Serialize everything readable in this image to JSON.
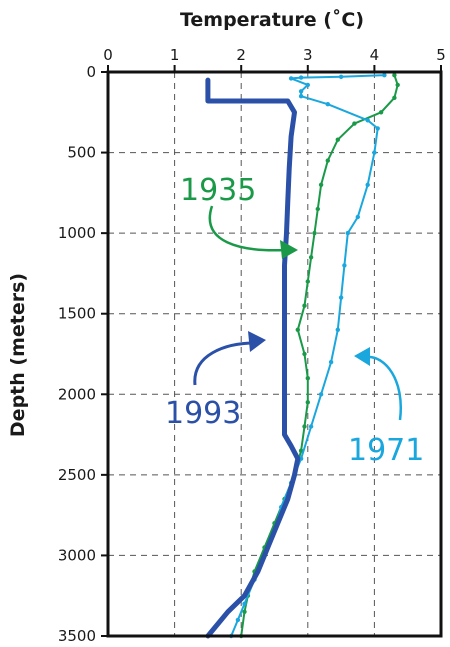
{
  "chart_data": {
    "type": "line",
    "xlabel": "Temperature (˚C)",
    "ylabel": "Depth  (meters)",
    "xlim": [
      0,
      5
    ],
    "ylim": [
      0,
      3500
    ],
    "y_inverted": true,
    "x_axis_position": "top",
    "grid": true,
    "grid_style": "dashed",
    "xticks": [
      "0",
      "1",
      "2",
      "3",
      "4",
      "5"
    ],
    "yticks": [
      "0",
      "500",
      "1000",
      "1500",
      "2000",
      "2500",
      "3000",
      "3500"
    ],
    "series": [
      {
        "name": "1935",
        "color": "#1a9a48",
        "markers": true,
        "points": [
          [
            4.3,
            20
          ],
          [
            4.35,
            80
          ],
          [
            4.3,
            160
          ],
          [
            4.1,
            250
          ],
          [
            3.7,
            320
          ],
          [
            3.45,
            420
          ],
          [
            3.3,
            550
          ],
          [
            3.2,
            700
          ],
          [
            3.15,
            850
          ],
          [
            3.1,
            1000
          ],
          [
            3.05,
            1150
          ],
          [
            3.0,
            1300
          ],
          [
            2.95,
            1450
          ],
          [
            2.85,
            1600
          ],
          [
            2.95,
            1750
          ],
          [
            3.0,
            1900
          ],
          [
            3.0,
            2050
          ],
          [
            2.95,
            2200
          ],
          [
            2.9,
            2350
          ],
          [
            2.8,
            2500
          ],
          [
            2.65,
            2650
          ],
          [
            2.5,
            2800
          ],
          [
            2.35,
            2950
          ],
          [
            2.2,
            3100
          ],
          [
            2.1,
            3250
          ],
          [
            2.05,
            3350
          ],
          [
            2.0,
            3500
          ]
        ]
      },
      {
        "name": "1971",
        "color": "#1aa7de",
        "markers": true,
        "points": [
          [
            4.15,
            20
          ],
          [
            3.5,
            30
          ],
          [
            2.9,
            35
          ],
          [
            2.75,
            40
          ],
          [
            3.0,
            80
          ],
          [
            2.9,
            120
          ],
          [
            2.9,
            150
          ],
          [
            3.3,
            200
          ],
          [
            3.9,
            300
          ],
          [
            4.05,
            350
          ],
          [
            4.0,
            500
          ],
          [
            3.9,
            700
          ],
          [
            3.75,
            900
          ],
          [
            3.6,
            1000
          ],
          [
            3.55,
            1200
          ],
          [
            3.5,
            1400
          ],
          [
            3.45,
            1600
          ],
          [
            3.35,
            1800
          ],
          [
            3.2,
            2000
          ],
          [
            3.05,
            2200
          ],
          [
            2.9,
            2400
          ],
          [
            2.75,
            2550
          ],
          [
            2.6,
            2700
          ],
          [
            2.5,
            2850
          ],
          [
            2.35,
            3000
          ],
          [
            2.2,
            3150
          ],
          [
            2.05,
            3300
          ],
          [
            1.95,
            3400
          ],
          [
            1.85,
            3500
          ]
        ]
      },
      {
        "name": "1993",
        "color": "#2b50a8",
        "markers": false,
        "points": [
          [
            1.5,
            50
          ],
          [
            1.5,
            120
          ],
          [
            1.5,
            180
          ],
          [
            2.7,
            180
          ],
          [
            2.8,
            250
          ],
          [
            2.75,
            400
          ],
          [
            2.72,
            600
          ],
          [
            2.7,
            800
          ],
          [
            2.68,
            1000
          ],
          [
            2.65,
            1200
          ],
          [
            2.65,
            1500
          ],
          [
            2.65,
            1800
          ],
          [
            2.65,
            2100
          ],
          [
            2.65,
            2250
          ],
          [
            2.75,
            2320
          ],
          [
            2.85,
            2400
          ],
          [
            2.8,
            2500
          ],
          [
            2.7,
            2650
          ],
          [
            2.55,
            2800
          ],
          [
            2.4,
            2950
          ],
          [
            2.25,
            3100
          ],
          [
            2.05,
            3250
          ],
          [
            1.8,
            3350
          ],
          [
            1.6,
            3450
          ],
          [
            1.5,
            3500
          ]
        ]
      }
    ]
  }
}
